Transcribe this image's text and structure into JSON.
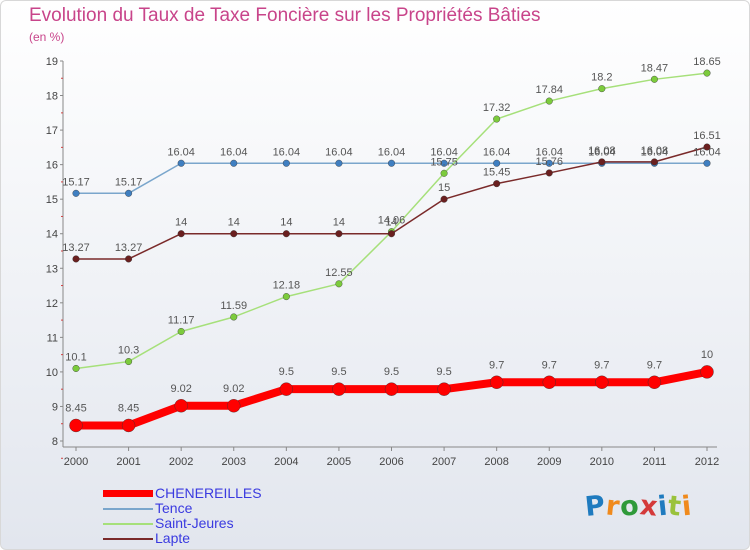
{
  "title": "Evolution du Taux de Taxe Foncière sur les Propriétés Bâties",
  "unit_label": "(en %)",
  "logo_text": "Proxiti",
  "colors": {
    "title": "#c8448a",
    "legend_text": "#3a3ae0",
    "axis": "#888888",
    "logo": [
      "#1f7bbf",
      "#f08a1c",
      "#2f9a3a",
      "#d43a3a",
      "#1f7bbf",
      "#9ac23c",
      "#f08a1c"
    ]
  },
  "chart_data": {
    "type": "line",
    "title": "Evolution du Taux de Taxe Foncière sur les Propriétés Bâties",
    "ylabel": "(en %)",
    "xlabel": "",
    "x": [
      "2000",
      "2001",
      "2002",
      "2003",
      "2004",
      "2005",
      "2006",
      "2007",
      "2008",
      "2009",
      "2010",
      "2011",
      "2012"
    ],
    "ylim": [
      8,
      19
    ],
    "yticks": [
      8,
      9,
      10,
      11,
      12,
      13,
      14,
      15,
      16,
      17,
      18,
      19
    ],
    "grid": false,
    "legend_position": "bottom-left",
    "series": [
      {
        "name": "CHENEREILLES",
        "color": "#ff0000",
        "marker_color": "#ff0000",
        "width": 8,
        "values": [
          8.45,
          8.45,
          9.02,
          9.02,
          9.5,
          9.5,
          9.5,
          9.5,
          9.7,
          9.7,
          9.7,
          9.7,
          10
        ],
        "labels": [
          "8.45",
          "8.45",
          "9.02",
          "9.02",
          "9.5",
          "9.5",
          "9.5",
          "9.5",
          "9.7",
          "9.7",
          "9.7",
          "9.7",
          "10"
        ]
      },
      {
        "name": "Tence",
        "color": "#7aa6cc",
        "marker_color": "#3f7fc1",
        "width": 1.5,
        "values": [
          15.17,
          15.17,
          16.04,
          16.04,
          16.04,
          16.04,
          16.04,
          16.04,
          16.04,
          16.04,
          16.04,
          16.04,
          16.04
        ],
        "labels": [
          "15.17",
          "15.17",
          "16.04",
          "16.04",
          "16.04",
          "16.04",
          "16.04",
          "16.04",
          "16.04",
          "16.04",
          "16.04",
          "16.04",
          "16.04"
        ]
      },
      {
        "name": "Saint-Jeures",
        "color": "#a6e07a",
        "marker_color": "#7ccb3c",
        "width": 1.5,
        "values": [
          10.1,
          10.3,
          11.17,
          11.59,
          12.18,
          12.55,
          14.06,
          15.75,
          17.32,
          17.84,
          18.2,
          18.47,
          18.65
        ],
        "labels": [
          "10.1",
          "10.3",
          "11.17",
          "11.59",
          "12.18",
          "12.55",
          "14.06",
          "15.75",
          "17.32",
          "17.84",
          "18.2",
          "18.47",
          "18.65"
        ]
      },
      {
        "name": "Lapte",
        "color": "#7a2a2a",
        "marker_color": "#6a1f1f",
        "width": 1.5,
        "values": [
          13.27,
          13.27,
          14,
          14,
          14,
          14,
          14,
          15,
          15.45,
          15.76,
          16.08,
          16.08,
          16.51
        ],
        "labels": [
          "13.27",
          "13.27",
          "14",
          "14",
          "14",
          "14",
          "14",
          "15",
          "15.45",
          "15.76",
          "16.08",
          "16.08",
          "16.51"
        ]
      }
    ]
  }
}
